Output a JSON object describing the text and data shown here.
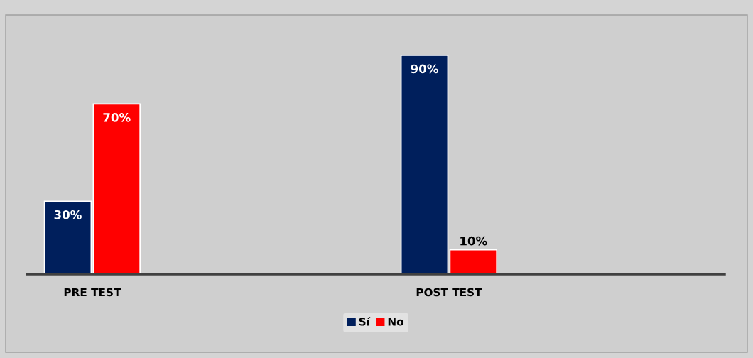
{
  "chart_data": {
    "type": "bar",
    "categories": [
      "PRE TEST",
      "POST TEST"
    ],
    "series": [
      {
        "name": "Sí",
        "color": "#001f5c",
        "values": [
          30,
          90
        ],
        "value_labels": [
          "30%",
          "90%"
        ]
      },
      {
        "name": "No",
        "color": "#ff0000",
        "values": [
          70,
          10
        ],
        "value_labels": [
          "70%",
          "10%"
        ]
      }
    ],
    "legend": "bottom",
    "grid": false
  }
}
